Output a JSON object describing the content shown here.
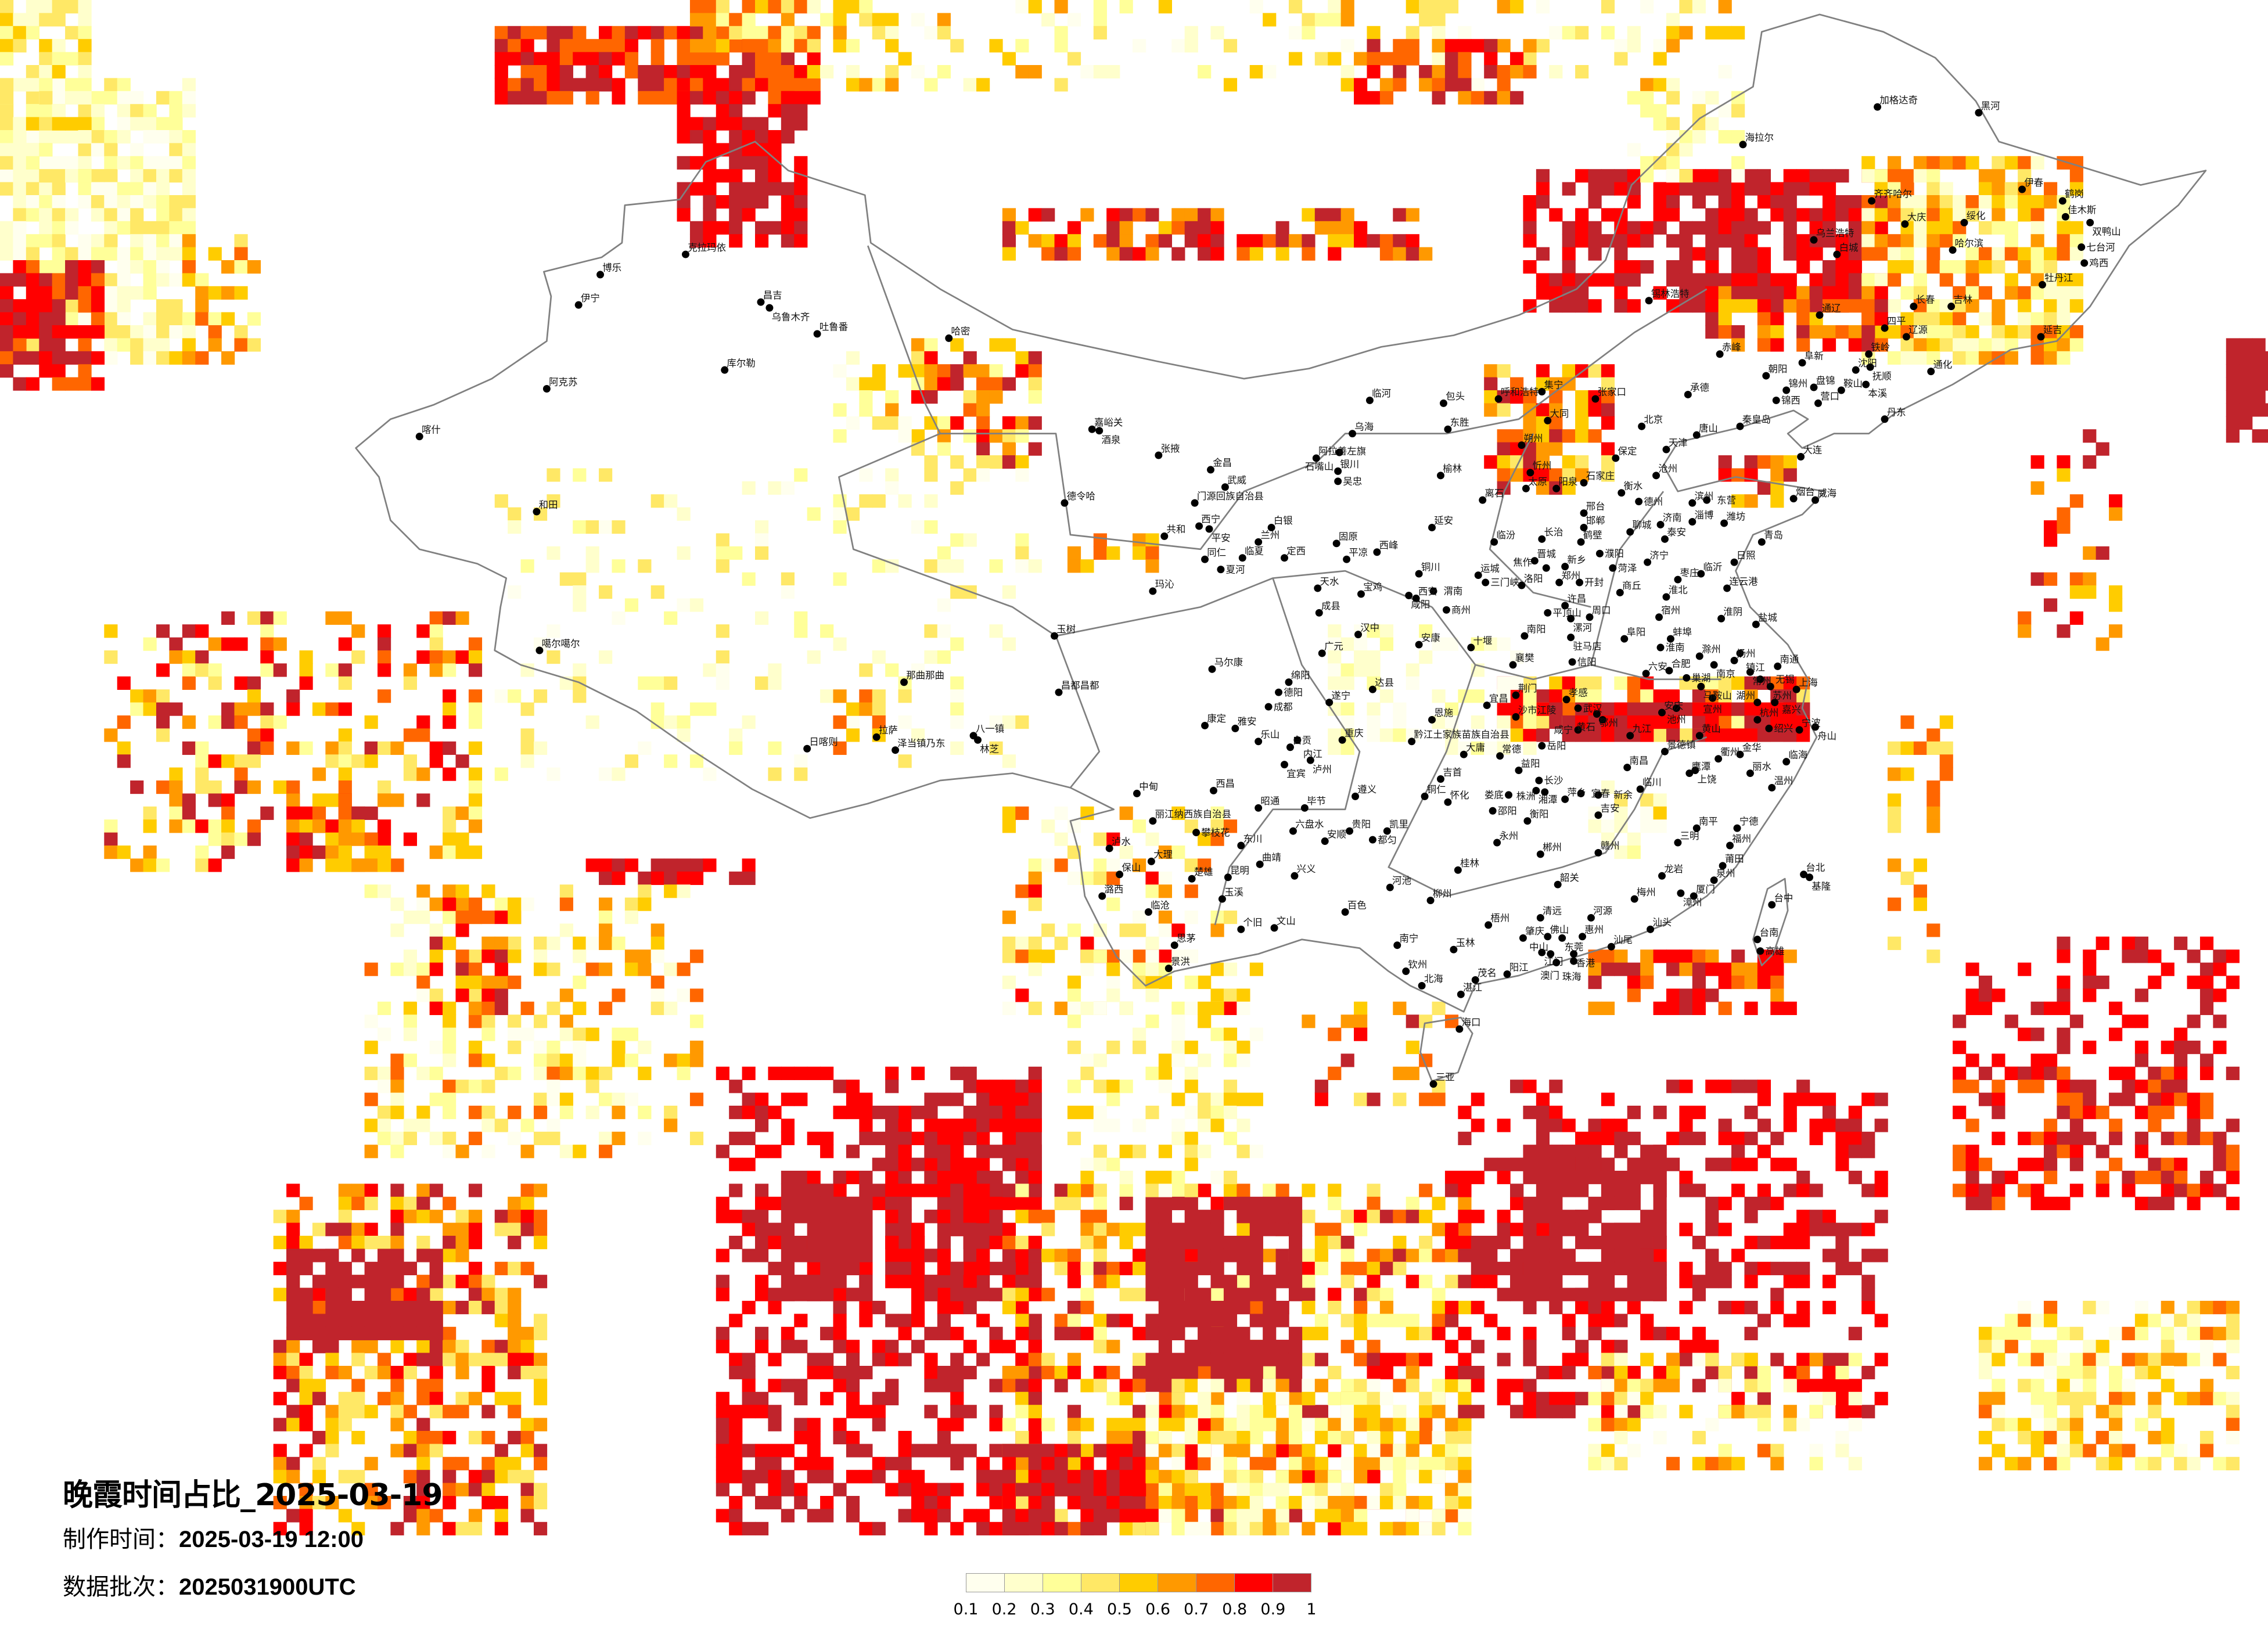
{
  "title": "晚霞时间占比_2025-03-19",
  "production_time": {
    "label": "制作时间：",
    "value": "2025-03-19 12:00"
  },
  "data_batch": {
    "label": "数据批次：",
    "value": "2025031900UTC"
  },
  "legend": {
    "colors": [
      "#FFFFEE",
      "#FFFFCC",
      "#FFFF99",
      "#FFE866",
      "#FFCC00",
      "#FF9900",
      "#FF6600",
      "#FF0000",
      "#C0242C"
    ],
    "ticks": [
      "0.1",
      "0.2",
      "0.3",
      "0.4",
      "0.5",
      "0.6",
      "0.7",
      "0.8",
      "0.9",
      "1"
    ]
  },
  "map": {
    "border_color": "#808080",
    "city_dot_color": "#000000"
  },
  "cities": [
    "克拉玛依",
    "博乐",
    "伊宁",
    "昌吉",
    "乌鲁木齐",
    "吐鲁番",
    "哈密",
    "库尔勒",
    "阿克苏",
    "和田",
    "喀什",
    "噶尔噶尔",
    "嘉峪关",
    "酒泉",
    "张掖",
    "金昌",
    "武威",
    "阿拉善左旗",
    "门源回族自治县",
    "德令哈",
    "西宁",
    "平安",
    "共和",
    "兰州",
    "白银",
    "临夏",
    "同仁",
    "夏河",
    "定西",
    "玛沁",
    "天水",
    "成县",
    "玉树",
    "马尔康",
    "绵阳",
    "德阳",
    "成都",
    "那曲那曲",
    "昌都昌都",
    "拉萨",
    "日喀则",
    "泽当镇乃东",
    "八一镇",
    "林芝",
    "康定",
    "雅安",
    "乐山",
    "自贡",
    "内江",
    "宜宾",
    "泸州",
    "中甸",
    "西昌",
    "丽江纳西族自治县",
    "攀枝花",
    "泸水",
    "大理",
    "保山",
    "潞西",
    "临沧",
    "楚雄",
    "昆明",
    "玉溪",
    "曲靖",
    "东川",
    "昭通",
    "毕节",
    "六盘水",
    "兴义",
    "个旧",
    "文山",
    "思茅",
    "广元",
    "景洪",
    "北京",
    "天津",
    "石家庄",
    "太原",
    "呼和浩特",
    "包头",
    "临河",
    "乌海",
    "东胜",
    "集宁",
    "张家口",
    "承德",
    "大同",
    "朔州",
    "忻州",
    "阳泉",
    "保定",
    "唐山",
    "秦皇岛",
    "沧州",
    "衡水",
    "德州",
    "邢台",
    "邯郸",
    "济南",
    "聊城",
    "泰安",
    "淄博",
    "滨州",
    "东营",
    "潍坊",
    "青岛",
    "烟台",
    "威海",
    "大连",
    "营口",
    "锦州",
    "朝阳",
    "阜新",
    "银川",
    "石嘴山",
    "吴忠",
    "固原",
    "榆林",
    "离石",
    "延安",
    "临汾",
    "长治",
    "晋城",
    "运城",
    "三门峡",
    "洛阳",
    "郑州",
    "开封",
    "焦作",
    "新乡",
    "鹤壁",
    "濮阳",
    "菏泽",
    "济宁",
    "枣庄",
    "临沂",
    "日照",
    "连云港",
    "商丘",
    "淮北",
    "宿州",
    "许昌",
    "平顶山",
    "漯河",
    "周口",
    "驻马店",
    "南阳",
    "阜阳",
    "蚌埠",
    "淮南",
    "淮阴",
    "盐城",
    "十堰",
    "襄樊",
    "信阳",
    "六安",
    "合肥",
    "滁州",
    "扬州",
    "镇江",
    "南京",
    "南通",
    "常州",
    "无锡",
    "苏州",
    "上海",
    "巢湖",
    "马鞍山",
    "西安",
    "咸阳",
    "渭南",
    "铜川",
    "宝鸡",
    "商州",
    "汉中",
    "安康",
    "达县",
    "平凉",
    "西峰",
    "遂宁",
    "重庆",
    "恩施",
    "宜昌",
    "荆门",
    "沙市江陵",
    "孝感",
    "武汉",
    "鄂州",
    "黄石",
    "咸宁",
    "九江",
    "安庆",
    "池州",
    "黔江土家族苗族自治县",
    "岳阳",
    "大庸",
    "常德",
    "益阳",
    "长沙",
    "湘潭",
    "株洲",
    "萍乡",
    "宜春",
    "新余",
    "吉安",
    "娄底",
    "邵阳",
    "衡阳",
    "永州",
    "郴州",
    "赣州",
    "南昌",
    "景德镇",
    "鹰潭",
    "临川",
    "上饶",
    "黄山",
    "衢州",
    "金华",
    "丽水",
    "温州",
    "临海",
    "杭州",
    "绍兴",
    "宁波",
    "舟山",
    "湖州",
    "嘉兴",
    "宣州",
    "南平",
    "三明",
    "宁德",
    "福州",
    "莆田",
    "泉州",
    "厦门",
    "漳州",
    "龙岩",
    "梅州",
    "汕头",
    "汕尾",
    "河源",
    "惠州",
    "东莞",
    "佛山",
    "肇庆",
    "清远",
    "韶关",
    "江门",
    "中山",
    "香港",
    "珠海",
    "澳门",
    "阳江",
    "茂名",
    "湛江",
    "北海",
    "钦州",
    "南宁",
    "玉林",
    "梧州",
    "柳州",
    "桂林",
    "河池",
    "百色",
    "海口",
    "三亚",
    "贵阳",
    "安顺",
    "凯里",
    "都匀",
    "遵义",
    "铜仁",
    "怀化",
    "吉首",
    "台北",
    "基隆",
    "台中",
    "台南",
    "高雄",
    "加格达奇",
    "黑河",
    "海拉尔",
    "伊春",
    "鹤岗",
    "佳木斯",
    "双鸭山",
    "七台河",
    "鸡西",
    "齐齐哈尔",
    "大庆",
    "绥化",
    "哈尔滨",
    "乌兰浩特",
    "白城",
    "牡丹江",
    "长春",
    "吉林",
    "通辽",
    "四平",
    "辽源",
    "延吉",
    "赤峰",
    "铁岭",
    "沈阳",
    "抚顺",
    "通化",
    "本溪",
    "鞍山",
    "丹东",
    "盘锦",
    "锦西",
    "锡林浩特"
  ]
}
